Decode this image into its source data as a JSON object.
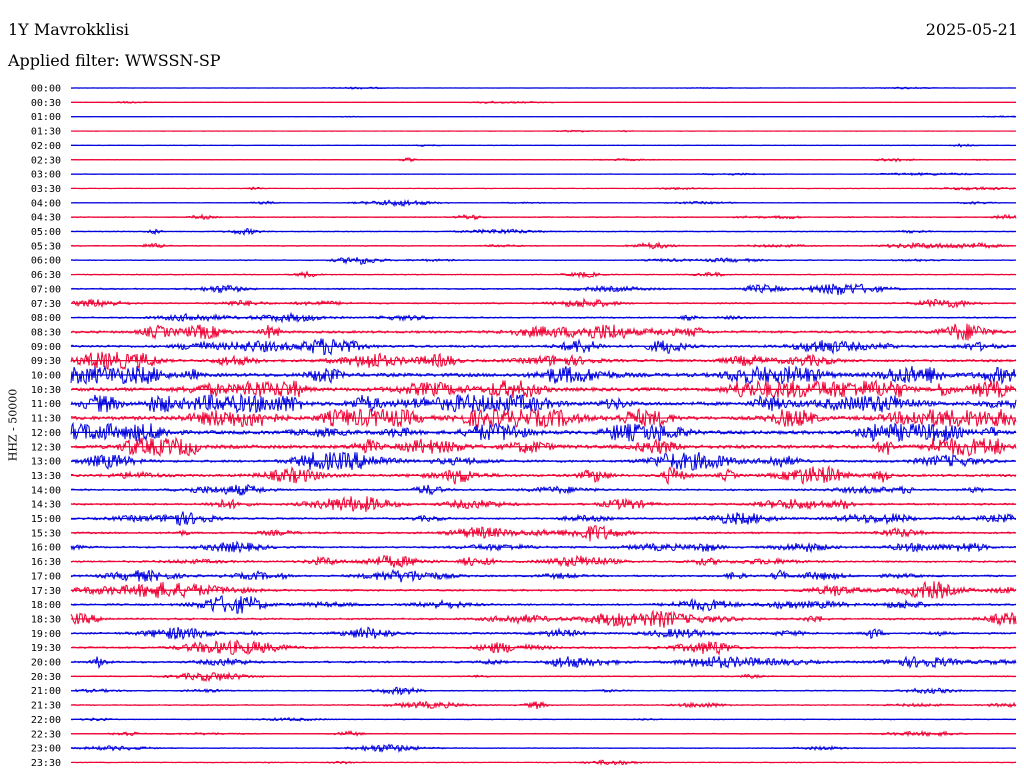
{
  "header": {
    "station": "1Y Mavrokklisi",
    "date": "2025-05-21",
    "filter": "Applied filter: WWSSN-SP"
  },
  "chart_data": {
    "type": "line",
    "title": "1Y Mavrokklisi",
    "ylabel": "HHZ - 50000",
    "row_labels": [
      "00:00",
      "00:30",
      "01:00",
      "01:30",
      "02:00",
      "02:30",
      "03:00",
      "03:30",
      "04:00",
      "04:30",
      "05:00",
      "05:30",
      "06:00",
      "06:30",
      "07:00",
      "07:30",
      "08:00",
      "08:30",
      "09:00",
      "09:30",
      "10:00",
      "10:30",
      "11:00",
      "11:30",
      "12:00",
      "12:30",
      "13:00",
      "13:30",
      "14:00",
      "14:30",
      "15:00",
      "15:30",
      "16:00",
      "16:30",
      "17:00",
      "17:30",
      "18:00",
      "18:30",
      "19:00",
      "19:30",
      "20:00",
      "20:30",
      "21:00",
      "21:30",
      "22:00",
      "22:30",
      "23:00",
      "23:30"
    ],
    "colors": [
      "#0000dd",
      "#ee0033"
    ]
  }
}
